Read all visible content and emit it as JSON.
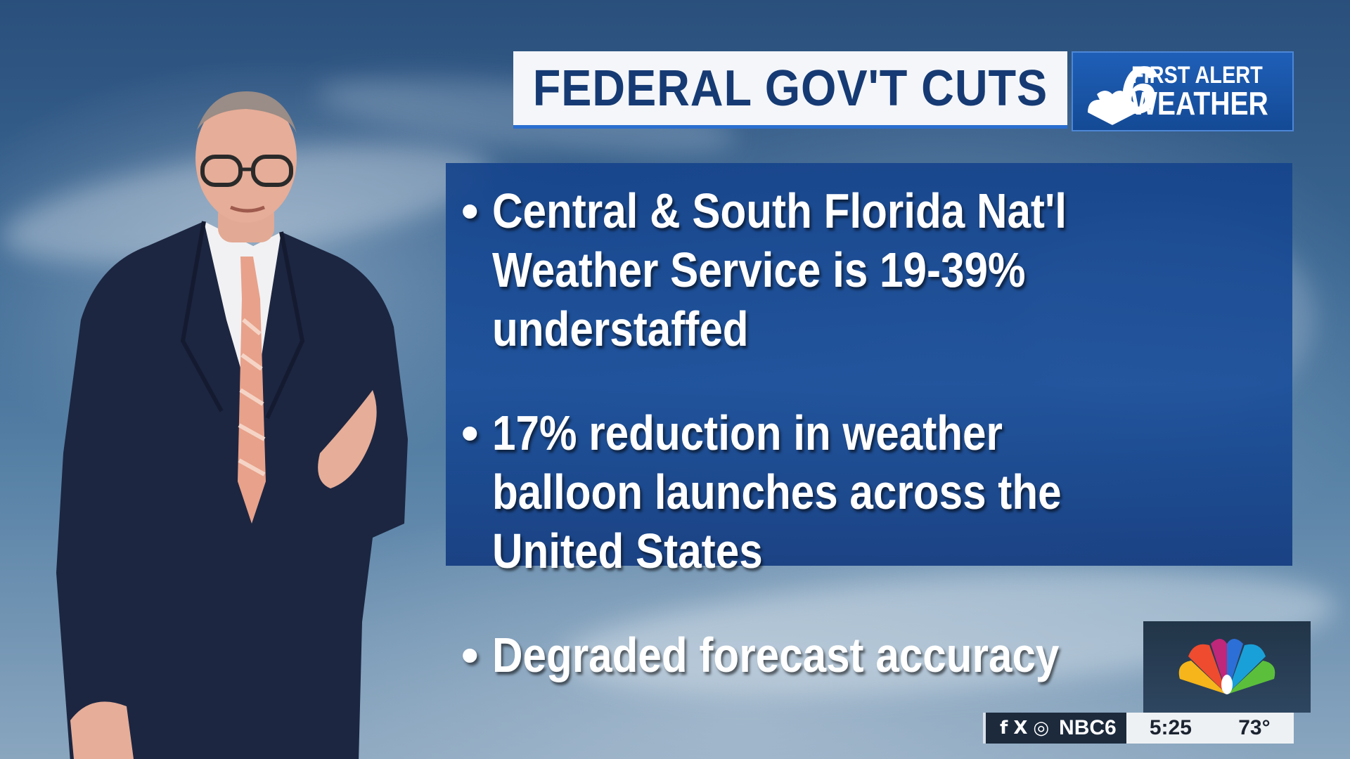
{
  "header": {
    "title": "FEDERAL GOV'T CUTS",
    "brand": {
      "channel_number": "6",
      "line1": "FIRST ALERT",
      "line2": "WEATHER"
    }
  },
  "bullets": [
    {
      "text": "Central & South Florida Nat'l Weather Service is 19-39% understaffed"
    },
    {
      "text": "17% reduction in weather balloon launches across the United States"
    },
    {
      "text": "Degraded forecast accuracy"
    }
  ],
  "bullet_symbol": "•",
  "footer": {
    "social_icons": [
      "facebook-icon",
      "x-icon",
      "instagram-icon"
    ],
    "social_glyphs": {
      "facebook": "f",
      "x": "X",
      "instagram": "◎"
    },
    "handle": "NBC6",
    "time": "5:25",
    "temperature": "73°"
  },
  "colors": {
    "title_text": "#163a73",
    "title_bg": "#f4f6f9",
    "brand_bg": "#1f5fb8",
    "panel_bg": "#1c4c94",
    "accent_line": "#2a6fd0"
  }
}
